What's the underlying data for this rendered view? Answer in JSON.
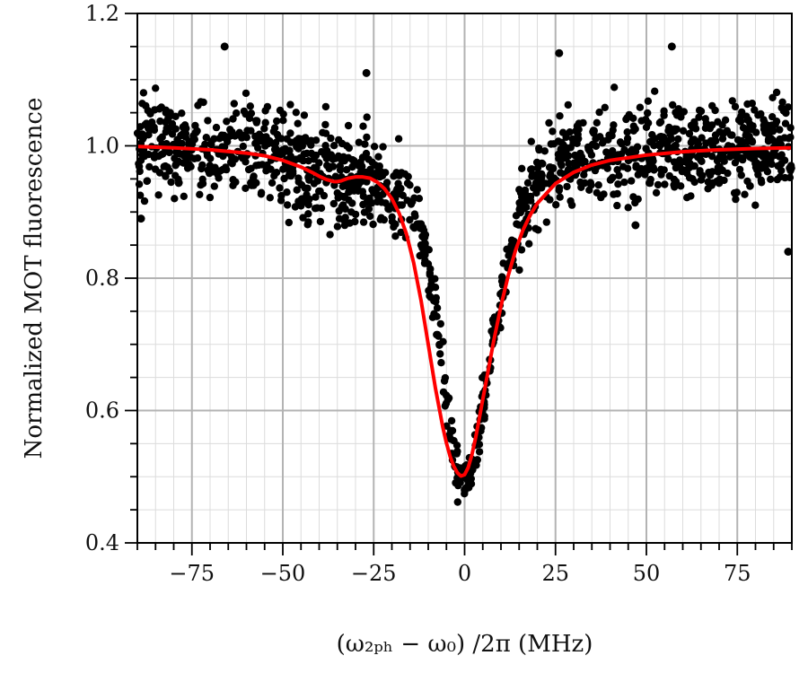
{
  "chart_data": {
    "type": "scatter",
    "xlabel": "(ω₂ₚₕ − ω₀) /2π (MHz)",
    "ylabel": "Normalized MOT fluorescence",
    "xlim": [
      -90,
      90
    ],
    "ylim": [
      0.4,
      1.2
    ],
    "grid": true,
    "minor_grid": true,
    "legend": "none",
    "x_ticks": [
      -75,
      -50,
      -25,
      0,
      25,
      50,
      75
    ],
    "x_tick_labels": [
      "−75",
      "−50",
      "−25",
      "0",
      "25",
      "50",
      "75"
    ],
    "y_ticks": [
      0.4,
      0.6,
      0.8,
      1.0,
      1.2
    ],
    "y_tick_labels": [
      "0.4",
      "0.6",
      "0.8",
      "1.0",
      "1.2"
    ],
    "series": [
      {
        "kind": "scatter",
        "color": "#000000",
        "envelope_x": [
          -90,
          -80,
          -70,
          -60,
          -50,
          -40,
          -35,
          -30,
          -25,
          -20,
          -15,
          -12,
          -10,
          -8,
          -6,
          -4,
          -2,
          0,
          2,
          4,
          6,
          8,
          10,
          12,
          15,
          18,
          20,
          25,
          30,
          40,
          50,
          60,
          70,
          80,
          90
        ],
        "envelope_y": [
          1.0,
          1.0,
          0.99,
          0.99,
          0.98,
          0.96,
          0.95,
          0.95,
          0.95,
          0.93,
          0.91,
          0.87,
          0.82,
          0.75,
          0.66,
          0.57,
          0.51,
          0.49,
          0.51,
          0.57,
          0.64,
          0.71,
          0.77,
          0.82,
          0.88,
          0.93,
          0.95,
          0.97,
          0.98,
          0.99,
          1.0,
          1.0,
          1.0,
          1.0,
          1.0
        ],
        "outliers": [
          {
            "x": -66,
            "y": 1.15
          },
          {
            "x": -27,
            "y": 1.11
          },
          {
            "x": 26,
            "y": 1.14
          },
          {
            "x": 57,
            "y": 1.15
          },
          {
            "x": 47,
            "y": 0.88
          },
          {
            "x": 89,
            "y": 0.84
          },
          {
            "x": -89,
            "y": 0.89
          }
        ]
      },
      {
        "kind": "line",
        "color": "#ff0000",
        "x": [
          -90,
          -80,
          -70,
          -60,
          -55,
          -50,
          -45,
          -42,
          -40,
          -38,
          -36,
          -35,
          -34,
          -32,
          -30,
          -28,
          -26,
          -24,
          -22,
          -20,
          -18,
          -16,
          -14,
          -12,
          -10,
          -8,
          -6,
          -5,
          -4,
          -3,
          -2,
          -1,
          0,
          1,
          2,
          3,
          4,
          5,
          6,
          8,
          10,
          12,
          14,
          16,
          18,
          20,
          25,
          30,
          35,
          40,
          50,
          60,
          70,
          80,
          90
        ],
        "y": [
          0.999,
          0.997,
          0.994,
          0.989,
          0.985,
          0.978,
          0.968,
          0.96,
          0.954,
          0.949,
          0.946,
          0.946,
          0.947,
          0.951,
          0.953,
          0.953,
          0.951,
          0.945,
          0.935,
          0.92,
          0.898,
          0.867,
          0.823,
          0.767,
          0.7,
          0.633,
          0.575,
          0.551,
          0.531,
          0.516,
          0.506,
          0.501,
          0.503,
          0.514,
          0.533,
          0.558,
          0.587,
          0.617,
          0.646,
          0.705,
          0.758,
          0.804,
          0.842,
          0.872,
          0.895,
          0.913,
          0.943,
          0.96,
          0.971,
          0.978,
          0.986,
          0.991,
          0.994,
          0.996,
          0.997
        ]
      }
    ]
  }
}
